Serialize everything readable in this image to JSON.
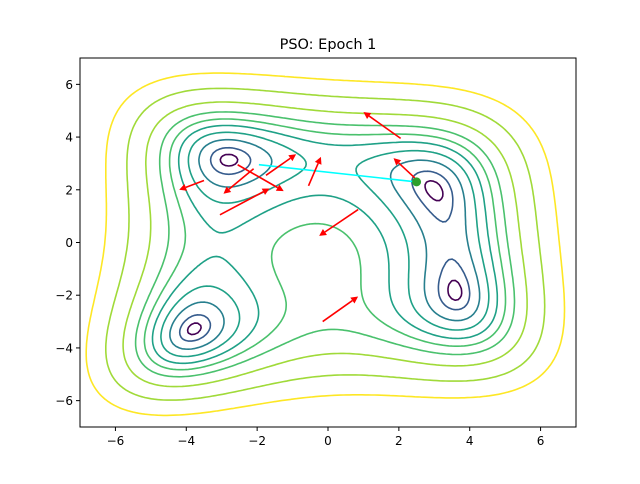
{
  "chart_data": {
    "type": "contour",
    "title": "PSO: Epoch 1",
    "xlabel": "",
    "ylabel": "",
    "xlim": [
      -7,
      7
    ],
    "ylim": [
      -7,
      7
    ],
    "xticks": [
      -6,
      -4,
      -2,
      0,
      2,
      4,
      6
    ],
    "yticks": [
      -6,
      -4,
      -2,
      0,
      2,
      4,
      6
    ],
    "grid": false,
    "function": "Himmelblau: (x^2 + y - 11)^2 + (x + y^2 - 7)^2",
    "contour_levels": [
      2,
      10,
      30,
      60,
      100,
      150,
      220,
      350,
      600,
      1000
    ],
    "colormap": [
      "#440154",
      "#46337e",
      "#365c8d",
      "#277f8e",
      "#1fa187",
      "#4ac16d",
      "#a0da39",
      "#fde725"
    ],
    "particle_velocity_arrows": [
      {
        "x": 2.05,
        "y": 3.95,
        "x2": 1.0,
        "y2": 4.95
      },
      {
        "x": 2.45,
        "y": 2.45,
        "x2": 1.85,
        "y2": 3.2
      },
      {
        "x": 0.85,
        "y": 1.25,
        "x2": -0.25,
        "y2": 0.25
      },
      {
        "x": -0.55,
        "y": 2.15,
        "x2": -0.2,
        "y2": 3.25
      },
      {
        "x": -2.55,
        "y": 2.95,
        "x2": -1.25,
        "y2": 1.95
      },
      {
        "x": -1.75,
        "y": 2.55,
        "x2": -0.9,
        "y2": 3.35
      },
      {
        "x": -3.05,
        "y": 1.05,
        "x2": -1.65,
        "y2": 2.05
      },
      {
        "x": -2.1,
        "y": 2.8,
        "x2": -2.95,
        "y2": 1.85
      },
      {
        "x": -3.5,
        "y": 2.35,
        "x2": -4.2,
        "y2": 2.0
      },
      {
        "x": -0.15,
        "y": -3.0,
        "x2": 0.85,
        "y2": -2.05
      }
    ],
    "global_best": {
      "x": 2.5,
      "y": 2.3
    },
    "best_path": [
      {
        "x": -1.95,
        "y": 2.95
      },
      {
        "x": 2.5,
        "y": 2.3
      }
    ],
    "colors": {
      "arrows": "#ff0000",
      "path": "#00ffff",
      "best_marker": "#2ca02c"
    }
  }
}
